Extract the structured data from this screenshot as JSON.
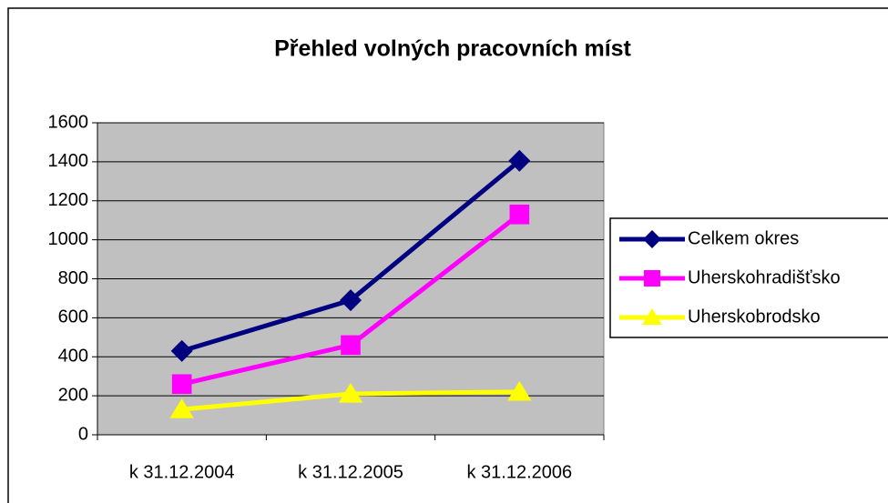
{
  "chart_data": {
    "type": "line",
    "title": "Přehled volných pracovních míst",
    "categories": [
      "k 31.12.2004",
      "k 31.12.2005",
      "k 31.12.2006"
    ],
    "series": [
      {
        "name": "Celkem okres",
        "color": "#000080",
        "marker": "diamond",
        "values": [
          430,
          690,
          1405
        ]
      },
      {
        "name": "Uherskohradišťsko",
        "color": "#ff00ff",
        "marker": "square",
        "values": [
          260,
          460,
          1130
        ]
      },
      {
        "name": "Uherskobrodsko",
        "color": "#ffff00",
        "marker": "triangle",
        "values": [
          130,
          210,
          220
        ]
      }
    ],
    "ylim": [
      0,
      1600
    ],
    "yticks": [
      0,
      200,
      400,
      600,
      800,
      1000,
      1200,
      1400,
      1600
    ],
    "grid": true,
    "legend": "right",
    "plot_background": "#c0c0c0"
  }
}
